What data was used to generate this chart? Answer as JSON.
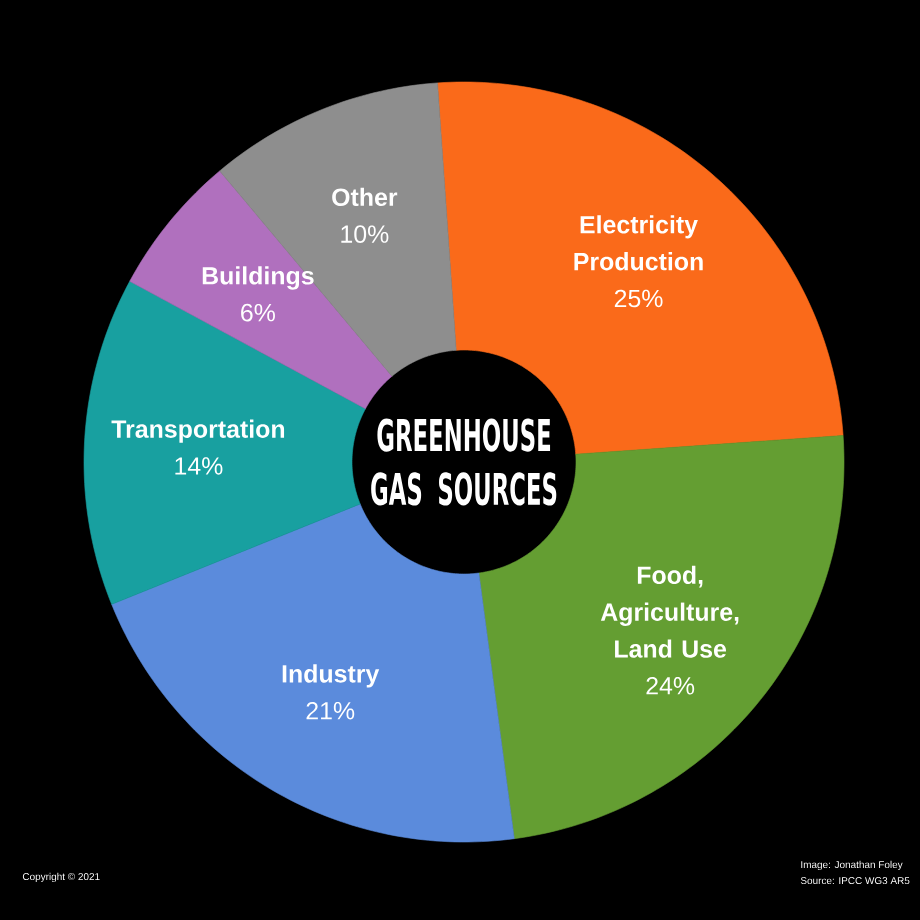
{
  "chart_data": {
    "type": "donut",
    "title": "GREENHOUSE GAS SOURCES",
    "categories": [
      "Electricity Production",
      "Food, Agriculture, Land Use",
      "Industry",
      "Transportation",
      "Buildings",
      "Other"
    ],
    "values": [
      25,
      24,
      21,
      14,
      6,
      10
    ],
    "colors": [
      "#fa6a1a",
      "#649e32",
      "#5b8bdc",
      "#18a0a0",
      "#b070be",
      "#8e8e8e"
    ],
    "value_labels": [
      "25%",
      "24%",
      "21%",
      "14%",
      "6%",
      "10%"
    ],
    "annotations": [
      "Image: Jonathan Foley",
      "Source: IPCC WG3 AR5",
      "Copyright © 2021"
    ]
  }
}
